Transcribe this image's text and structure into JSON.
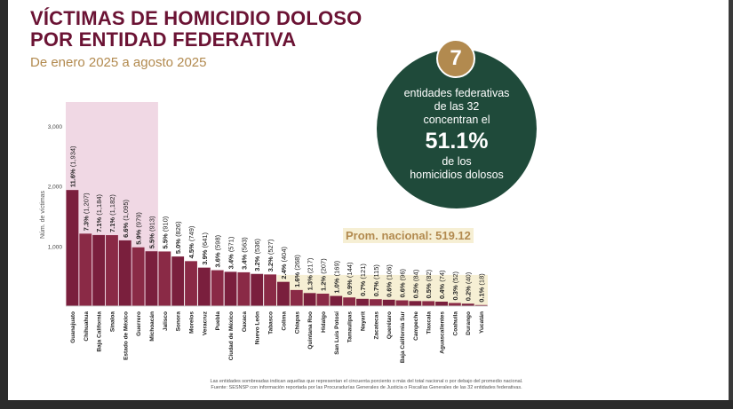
{
  "header": {
    "title_line1": "VÍCTIMAS DE HOMICIDIO DOLOSO",
    "title_line2": "POR ENTIDAD FEDERATIVA",
    "subtitle": "De enero 2025 a agosto 2025"
  },
  "callout": {
    "number": "7",
    "line1": "entidades federativas",
    "line2": "de las 32",
    "line3": "concentran el",
    "percent": "51.1%",
    "line4": "de los",
    "line5": "homicidios dolosos"
  },
  "average": {
    "label": "Prom. nacional: 519.12",
    "value": 519.12
  },
  "notes": {
    "line1": "Las entidades sombreadas indican aquellas que representan el cincuenta porciento o más del total nacional o por debajo del promedio nacional.",
    "line2": "Fuente: SESNSP con información reportada por las Procuradurías Generales de Justicia o Fiscalías Generales de las 32 entidades federativas."
  },
  "colors": {
    "bar_primary": "#7a1f3d",
    "bar_secondary": "#8a2a46",
    "highlight_band": "#f0d8e4",
    "below_band": "#f6efd4",
    "circle_bg": "#1f4a3a",
    "badge": "#b28a4f",
    "title": "#6b1334"
  },
  "chart_data": {
    "type": "bar",
    "ylabel": "Núm. de víctimas",
    "ylim": [
      0,
      3400
    ],
    "yticks": [
      1000,
      2000,
      3000
    ],
    "ytick_labels": [
      "1,000",
      "2,000",
      "3,000"
    ],
    "grid": false,
    "highlighted_count": 7,
    "categories": [
      "Guanajuato",
      "Chihuahua",
      "Baja California",
      "Sinaloa",
      "Estado de México",
      "Guerrero",
      "Michoacán",
      "Jalisco",
      "Sonora",
      "Morelos",
      "Veracruz",
      "Puebla",
      "Ciudad de México",
      "Oaxaca",
      "Nuevo León",
      "Tabasco",
      "Colima",
      "Chiapas",
      "Quintana Roo",
      "Hidalgo",
      "San Luis Potosí",
      "Tamaulipas",
      "Nayarit",
      "Zacatecas",
      "Querétaro",
      "Baja California Sur",
      "Campeche",
      "Tlaxcala",
      "Aguascalientes",
      "Coahuila",
      "Durango",
      "Yucatán"
    ],
    "values": [
      1934,
      1207,
      1184,
      1182,
      1095,
      979,
      913,
      910,
      826,
      749,
      641,
      598,
      571,
      563,
      536,
      527,
      404,
      268,
      217,
      207,
      169,
      144,
      121,
      115,
      106,
      96,
      84,
      82,
      74,
      52,
      40,
      18
    ],
    "data_labels": [
      "11.6% (1,934)",
      "7.3% (1,207)",
      "7.1% (1,184)",
      "7.1% (1,182)",
      "6.6% (1,095)",
      "5.9% (979)",
      "5.5% (913)",
      "5.5% (910)",
      "5.0% (826)",
      "4.5% (749)",
      "3.9% (641)",
      "3.6% (598)",
      "3.4% (571)",
      "3.4% (563)",
      "3.2% (536)",
      "3.2% (527)",
      "2.4% (404)",
      "1.6% (268)",
      "1.3% (217)",
      "1.2% (207)",
      "1.0% (169)",
      "0.9% (144)",
      "0.7% (121)",
      "0.7% (115)",
      "0.6% (106)",
      "0.6% (96)",
      "0.5% (84)",
      "0.5% (82)",
      "0.4% (74)",
      "0.3% (52)",
      "0.2% (40)",
      "0.1% (18)"
    ]
  }
}
